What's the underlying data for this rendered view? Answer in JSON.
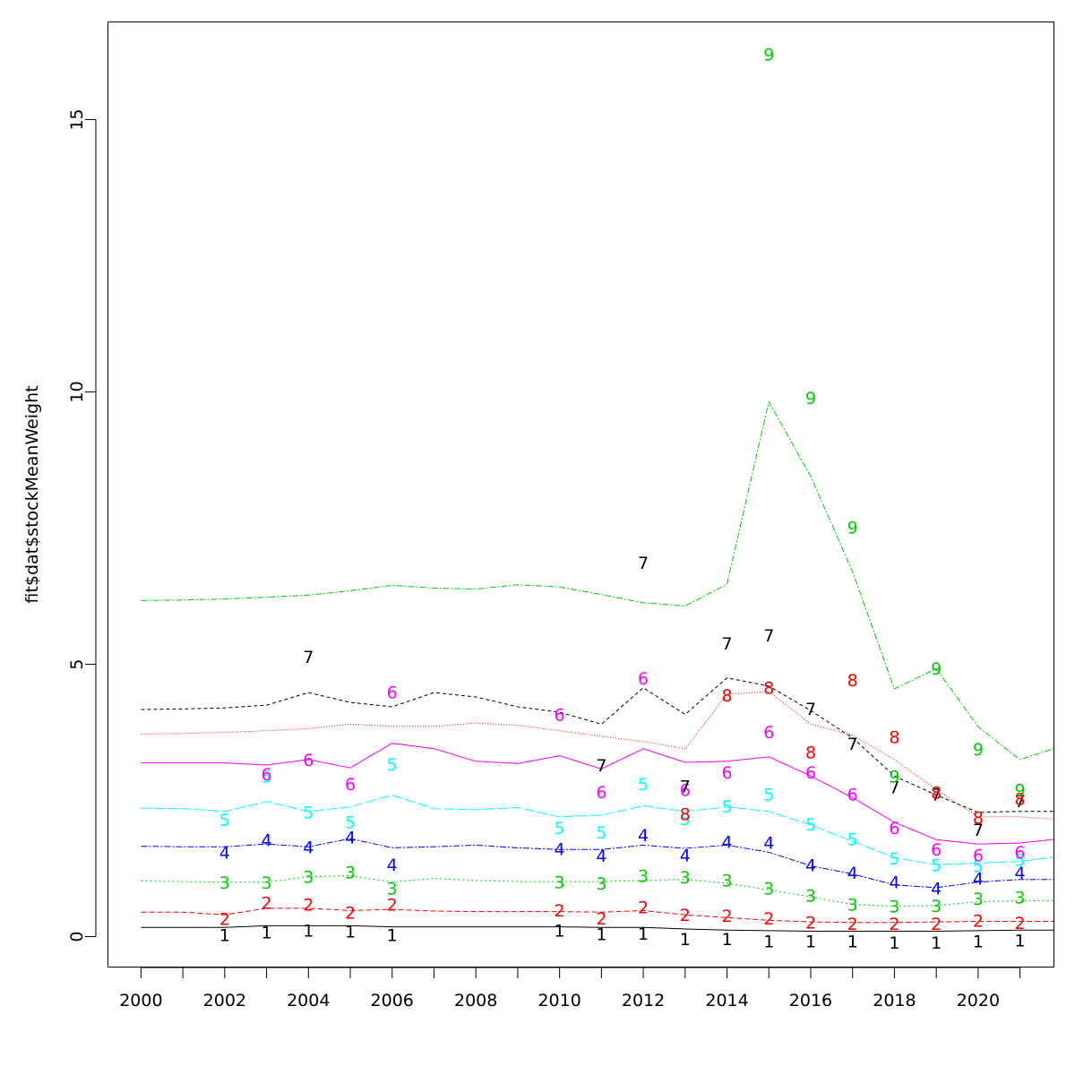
{
  "chart_data": {
    "type": "line",
    "title": "",
    "xlabel": "",
    "ylabel": "fit$dat$stockMeanWeight",
    "xlim": [
      1999.2,
      2021.8
    ],
    "ylim": [
      -0.55,
      16.8
    ],
    "xticks": [
      2000,
      2001,
      2002,
      2003,
      2004,
      2005,
      2006,
      2007,
      2008,
      2009,
      2010,
      2011,
      2012,
      2013,
      2014,
      2015,
      2016,
      2017,
      2018,
      2019,
      2020,
      2021
    ],
    "xtick_labels": [
      "2000",
      "",
      "2002",
      "",
      "2004",
      "",
      "2006",
      "",
      "2008",
      "",
      "2010",
      "",
      "2012",
      "",
      "2014",
      "",
      "2016",
      "",
      "2018",
      "",
      "2020",
      ""
    ],
    "yticks": [
      0,
      5,
      10,
      15
    ],
    "ytick_labels": [
      "0",
      "5",
      "10",
      "15"
    ],
    "grid": false,
    "legend": "none",
    "x": [
      2000,
      2001,
      2002,
      2003,
      2004,
      2005,
      2006,
      2007,
      2008,
      2009,
      2010,
      2011,
      2012,
      2013,
      2014,
      2015,
      2016,
      2017,
      2018,
      2019,
      2020,
      2021,
      2022
    ],
    "series": [
      {
        "label": "1",
        "color": "#000000",
        "dash": "",
        "line": [
          0.17,
          0.17,
          0.17,
          0.2,
          0.2,
          0.2,
          0.18,
          0.18,
          0.18,
          0.18,
          0.18,
          0.17,
          0.17,
          0.14,
          0.12,
          0.11,
          0.1,
          0.1,
          0.1,
          0.1,
          0.11,
          0.12,
          0.12
        ],
        "points": [
          [
            2002,
            0.02
          ],
          [
            2003,
            0.07
          ],
          [
            2004,
            0.1
          ],
          [
            2005,
            0.08
          ],
          [
            2006,
            0.02
          ],
          [
            2010,
            0.1
          ],
          [
            2011,
            0.03
          ],
          [
            2012,
            0.04
          ],
          [
            2013,
            -0.06
          ],
          [
            2014,
            -0.06
          ],
          [
            2015,
            -0.1
          ],
          [
            2016,
            -0.1
          ],
          [
            2017,
            -0.1
          ],
          [
            2018,
            -0.12
          ],
          [
            2019,
            -0.12
          ],
          [
            2020,
            -0.1
          ],
          [
            2021,
            -0.08
          ]
        ]
      },
      {
        "label": "2",
        "color": "#ff0000",
        "dash": "6 3",
        "line": [
          0.45,
          0.45,
          0.4,
          0.52,
          0.52,
          0.48,
          0.5,
          0.47,
          0.46,
          0.46,
          0.46,
          0.45,
          0.48,
          0.4,
          0.35,
          0.3,
          0.27,
          0.26,
          0.26,
          0.27,
          0.28,
          0.28,
          0.28
        ],
        "points": [
          [
            2002,
            0.31
          ],
          [
            2003,
            0.61
          ],
          [
            2004,
            0.58
          ],
          [
            2005,
            0.43
          ],
          [
            2006,
            0.58
          ],
          [
            2010,
            0.47
          ],
          [
            2011,
            0.32
          ],
          [
            2012,
            0.53
          ],
          [
            2013,
            0.39
          ],
          [
            2014,
            0.37
          ],
          [
            2015,
            0.32
          ],
          [
            2016,
            0.25
          ],
          [
            2017,
            0.22
          ],
          [
            2018,
            0.22
          ],
          [
            2019,
            0.22
          ],
          [
            2020,
            0.28
          ],
          [
            2021,
            0.24
          ]
        ]
      },
      {
        "label": "3",
        "color": "#00cd00",
        "dash": "2 3",
        "line": [
          1.02,
          1.01,
          1.0,
          1.0,
          1.1,
          1.12,
          1.0,
          1.07,
          1.03,
          1.01,
          1.01,
          1.01,
          1.03,
          1.05,
          0.98,
          0.86,
          0.73,
          0.59,
          0.56,
          0.57,
          0.64,
          0.66,
          0.66
        ],
        "points": [
          [
            2002,
            0.98
          ],
          [
            2003,
            0.98
          ],
          [
            2004,
            1.09
          ],
          [
            2005,
            1.17
          ],
          [
            2006,
            0.87
          ],
          [
            2010,
            0.99
          ],
          [
            2011,
            0.96
          ],
          [
            2012,
            1.1
          ],
          [
            2013,
            1.08
          ],
          [
            2014,
            1.02
          ],
          [
            2015,
            0.87
          ],
          [
            2016,
            0.74
          ],
          [
            2017,
            0.58
          ],
          [
            2018,
            0.54
          ],
          [
            2019,
            0.55
          ],
          [
            2020,
            0.68
          ],
          [
            2021,
            0.71
          ]
        ]
      },
      {
        "label": "4",
        "color": "#0000ff",
        "dash": "7 2 2 2",
        "line": [
          1.66,
          1.65,
          1.65,
          1.7,
          1.65,
          1.8,
          1.63,
          1.65,
          1.68,
          1.63,
          1.6,
          1.6,
          1.68,
          1.62,
          1.68,
          1.55,
          1.3,
          1.15,
          0.95,
          0.9,
          1.0,
          1.05,
          1.05
        ],
        "points": [
          [
            2002,
            1.53
          ],
          [
            2003,
            1.76
          ],
          [
            2004,
            1.63
          ],
          [
            2005,
            1.81
          ],
          [
            2006,
            1.31
          ],
          [
            2010,
            1.6
          ],
          [
            2011,
            1.47
          ],
          [
            2012,
            1.85
          ],
          [
            2013,
            1.48
          ],
          [
            2014,
            1.73
          ],
          [
            2015,
            1.71
          ],
          [
            2016,
            1.3
          ],
          [
            2017,
            1.16
          ],
          [
            2018,
            0.99
          ],
          [
            2019,
            0.87
          ],
          [
            2020,
            1.05
          ],
          [
            2021,
            1.16
          ]
        ]
      },
      {
        "label": "5",
        "color": "#00ffff",
        "dash": "12 3",
        "line": [
          2.36,
          2.35,
          2.3,
          2.48,
          2.3,
          2.38,
          2.6,
          2.35,
          2.33,
          2.37,
          2.2,
          2.23,
          2.4,
          2.3,
          2.38,
          2.3,
          2.05,
          1.75,
          1.45,
          1.32,
          1.35,
          1.38,
          1.48
        ],
        "points": [
          [
            2002,
            2.13
          ],
          [
            2003,
            2.93
          ],
          [
            2004,
            2.27
          ],
          [
            2005,
            2.09
          ],
          [
            2006,
            3.15
          ],
          [
            2010,
            1.98
          ],
          [
            2011,
            1.9
          ],
          [
            2012,
            2.79
          ],
          [
            2013,
            2.15
          ],
          [
            2014,
            2.38
          ],
          [
            2015,
            2.6
          ],
          [
            2016,
            2.05
          ],
          [
            2017,
            1.78
          ],
          [
            2018,
            1.42
          ],
          [
            2019,
            1.3
          ],
          [
            2020,
            1.28
          ],
          [
            2021,
            1.4
          ]
        ]
      },
      {
        "label": "6",
        "color": "#ff00ff",
        "dash": "",
        "line": [
          3.19,
          3.19,
          3.19,
          3.15,
          3.25,
          3.1,
          3.55,
          3.45,
          3.22,
          3.18,
          3.32,
          3.08,
          3.45,
          3.2,
          3.22,
          3.3,
          2.95,
          2.55,
          2.1,
          1.78,
          1.7,
          1.72,
          1.8
        ],
        "points": [
          [
            2003,
            2.97
          ],
          [
            2004,
            3.23
          ],
          [
            2005,
            2.79
          ],
          [
            2006,
            4.47
          ],
          [
            2010,
            4.06
          ],
          [
            2011,
            2.64
          ],
          [
            2012,
            4.73
          ],
          [
            2013,
            2.68
          ],
          [
            2014,
            3.0
          ],
          [
            2015,
            3.74
          ],
          [
            2016,
            3.0
          ],
          [
            2017,
            2.6
          ],
          [
            2018,
            1.98
          ],
          [
            2019,
            1.59
          ],
          [
            2020,
            1.48
          ],
          [
            2021,
            1.54
          ]
        ]
      },
      {
        "label": "7",
        "color": "#000000",
        "dash": "4 3",
        "line": [
          4.17,
          4.18,
          4.2,
          4.25,
          4.48,
          4.3,
          4.22,
          4.48,
          4.4,
          4.22,
          4.12,
          3.9,
          4.57,
          4.08,
          4.75,
          4.6,
          4.15,
          3.65,
          2.95,
          2.6,
          2.28,
          2.3,
          2.3
        ],
        "points": [
          [
            2004,
            5.12
          ],
          [
            2011,
            3.13
          ],
          [
            2012,
            6.85
          ],
          [
            2013,
            2.75
          ],
          [
            2014,
            5.37
          ],
          [
            2015,
            5.52
          ],
          [
            2016,
            4.17
          ],
          [
            2017,
            3.53
          ],
          [
            2018,
            2.73
          ],
          [
            2019,
            2.6
          ],
          [
            2020,
            1.95
          ],
          [
            2021,
            2.48
          ]
        ]
      },
      {
        "label": "8",
        "color": "#ff0000",
        "dash": "1 2",
        "line": [
          3.72,
          3.73,
          3.75,
          3.78,
          3.82,
          3.9,
          3.86,
          3.86,
          3.92,
          3.88,
          3.78,
          3.68,
          3.58,
          3.45,
          4.45,
          4.5,
          3.9,
          3.7,
          3.25,
          2.7,
          2.2,
          2.2,
          2.15
        ],
        "points": [
          [
            2013,
            2.24
          ],
          [
            2014,
            4.42
          ],
          [
            2015,
            4.56
          ],
          [
            2016,
            3.37
          ],
          [
            2017,
            4.7
          ],
          [
            2018,
            3.65
          ],
          [
            2019,
            2.63
          ],
          [
            2020,
            2.17
          ],
          [
            2021,
            2.52
          ]
        ]
      },
      {
        "label": "9",
        "color": "#00cd00",
        "dash": "7 2 2 2",
        "line": [
          6.17,
          6.18,
          6.2,
          6.23,
          6.27,
          6.35,
          6.45,
          6.4,
          6.38,
          6.46,
          6.42,
          6.28,
          6.13,
          6.07,
          6.47,
          9.82,
          8.45,
          6.7,
          4.55,
          4.92,
          3.85,
          3.25,
          3.5
        ],
        "points": [
          [
            2015,
            16.18
          ],
          [
            2016,
            9.88
          ],
          [
            2017,
            7.5
          ],
          [
            2018,
            2.93
          ],
          [
            2019,
            4.91
          ],
          [
            2020,
            3.43
          ],
          [
            2021,
            2.68
          ]
        ]
      }
    ]
  }
}
